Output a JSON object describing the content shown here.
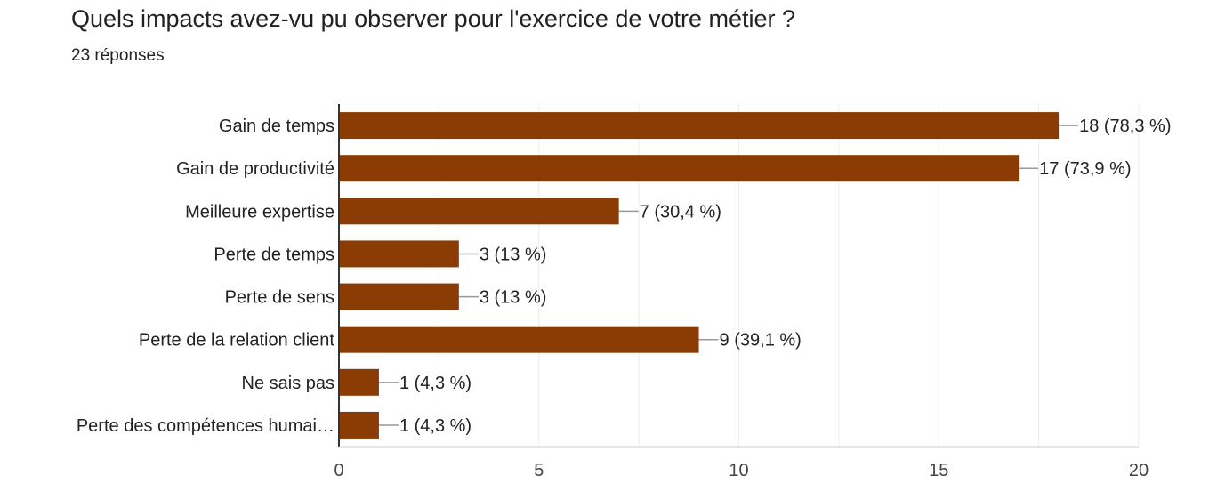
{
  "question": {
    "title": "Quels impacts avez-vu pu observer pour l'exercice de votre métier ?",
    "responses": "23 réponses"
  },
  "chart_data": {
    "type": "bar",
    "orientation": "horizontal",
    "title": "Quels impacts avez-vu pu observer pour l'exercice de votre métier ?",
    "subtitle": "23 réponses",
    "categories": [
      "Gain de temps",
      "Gain de productivité",
      "Meilleure expertise",
      "Perte de temps",
      "Perte de sens",
      "Perte de la relation client",
      "Ne sais pas",
      "Perte des compétences humai…"
    ],
    "values": [
      18,
      17,
      7,
      3,
      3,
      9,
      1,
      1
    ],
    "data_labels": [
      "18 (78,3 %)",
      "17 (73,9 %)",
      "7 (30,4 %)",
      "3 (13 %)",
      "3 (13 %)",
      "9 (39,1 %)",
      "1 (4,3 %)",
      "1 (4,3 %)"
    ],
    "xlim": [
      0,
      20
    ],
    "xticks": [
      0,
      5,
      10,
      15,
      20
    ],
    "grid": true,
    "bar_color": "#8a3c04",
    "grid_color": "#ececec",
    "axis_color": "#333333",
    "label_color": "#222222",
    "tick_color": "#444444"
  }
}
